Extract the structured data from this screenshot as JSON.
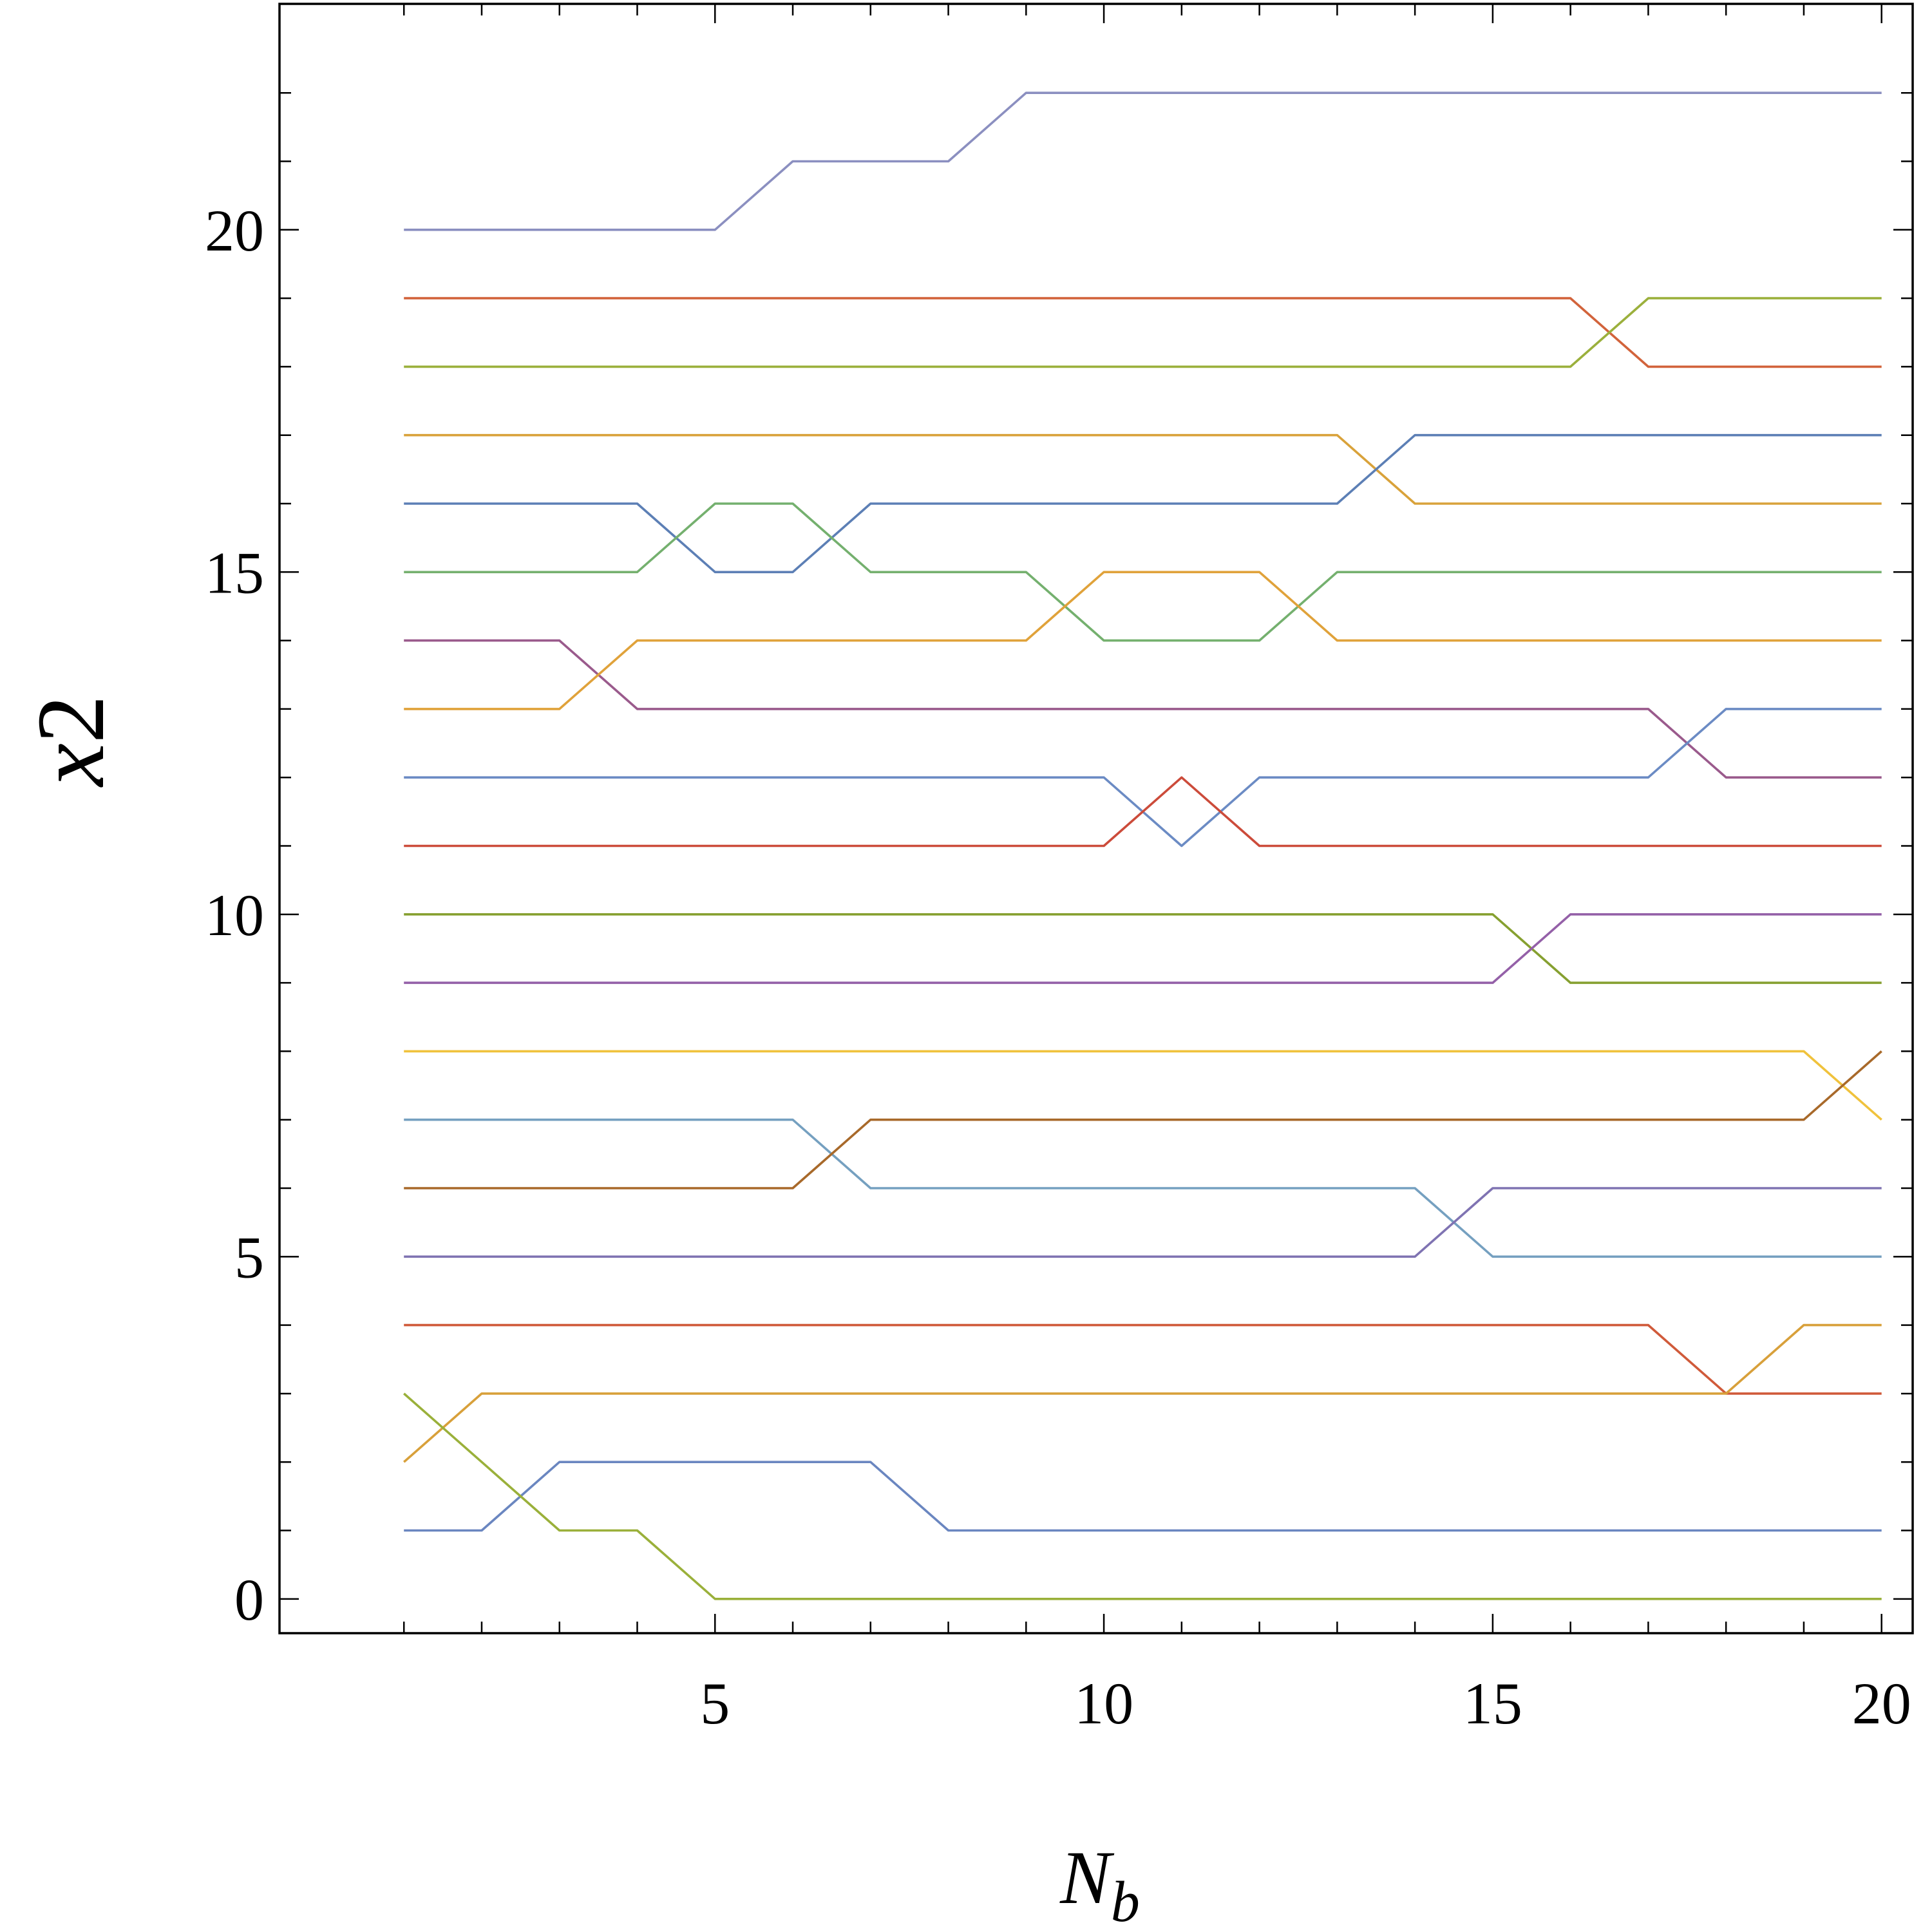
{
  "chart_data": {
    "type": "line",
    "xlabel": "N",
    "xlabel_sub": "b",
    "ylabel": "x",
    "ylabel_sub": "2",
    "xlim": [
      -0.6,
      20.4
    ],
    "ylim": [
      -0.5,
      23.3
    ],
    "x_ticks": [
      5,
      10,
      15,
      20
    ],
    "y_ticks": [
      0,
      5,
      10,
      15,
      20
    ],
    "x_minor_ticks": [
      1,
      2,
      3,
      4,
      5,
      6,
      7,
      8,
      9,
      10,
      11,
      12,
      13,
      14,
      15,
      16,
      17,
      18,
      19,
      20
    ],
    "y_minor_ticks": [
      0,
      1,
      2,
      3,
      4,
      5,
      6,
      7,
      8,
      9,
      10,
      11,
      12,
      13,
      14,
      15,
      16,
      17,
      18,
      19,
      20,
      21,
      22
    ],
    "grid": false,
    "x": [
      1,
      2,
      3,
      4,
      5,
      6,
      7,
      8,
      9,
      10,
      11,
      12,
      13,
      14,
      15,
      16,
      17,
      18,
      19,
      20
    ],
    "series": [
      {
        "color": "#8B8FC0",
        "values": [
          20,
          20,
          20,
          20,
          20,
          21,
          21,
          21,
          22,
          22,
          22,
          22,
          22,
          22,
          22,
          22,
          22,
          22,
          22,
          22
        ]
      },
      {
        "color": "#D2633B",
        "values": [
          19,
          19,
          19,
          19,
          19,
          19,
          19,
          19,
          19,
          19,
          19,
          19,
          19,
          19,
          19,
          19,
          18,
          18,
          18,
          18
        ]
      },
      {
        "color": "#9BB03C",
        "values": [
          18,
          18,
          18,
          18,
          18,
          18,
          18,
          18,
          18,
          18,
          18,
          18,
          18,
          18,
          18,
          18,
          19,
          19,
          19,
          19
        ]
      },
      {
        "color": "#D9A23A",
        "values": [
          17,
          17,
          17,
          17,
          17,
          17,
          17,
          17,
          17,
          17,
          17,
          17,
          17,
          16,
          16,
          16,
          16,
          16,
          16,
          16
        ]
      },
      {
        "color": "#5C7FB5",
        "values": [
          16,
          16,
          16,
          16,
          15,
          15,
          16,
          16,
          16,
          16,
          16,
          16,
          16,
          17,
          17,
          17,
          17,
          17,
          17,
          17
        ]
      },
      {
        "color": "#74B06E",
        "values": [
          15,
          15,
          15,
          15,
          16,
          16,
          15,
          15,
          15,
          14,
          14,
          14,
          15,
          15,
          15,
          15,
          15,
          15,
          15,
          15
        ]
      },
      {
        "color": "#9A5A8C",
        "values": [
          14,
          14,
          14,
          13,
          13,
          13,
          13,
          13,
          13,
          13,
          13,
          13,
          13,
          13,
          13,
          13,
          13,
          12,
          12,
          12
        ]
      },
      {
        "color": "#E0A23A",
        "values": [
          13,
          13,
          13,
          14,
          14,
          14,
          14,
          14,
          14,
          15,
          15,
          15,
          14,
          14,
          14,
          14,
          14,
          14,
          14,
          14
        ]
      },
      {
        "color": "#6B8BC4",
        "values": [
          12,
          12,
          12,
          12,
          12,
          12,
          12,
          12,
          12,
          12,
          11,
          12,
          12,
          12,
          12,
          12,
          12,
          13,
          13,
          13
        ]
      },
      {
        "color": "#CC4B3A",
        "values": [
          11,
          11,
          11,
          11,
          11,
          11,
          11,
          11,
          11,
          11,
          12,
          11,
          11,
          11,
          11,
          11,
          11,
          11,
          11,
          11
        ]
      },
      {
        "color": "#86A030",
        "values": [
          10,
          10,
          10,
          10,
          10,
          10,
          10,
          10,
          10,
          10,
          10,
          10,
          10,
          10,
          10,
          9,
          9,
          9,
          9,
          9
        ]
      },
      {
        "color": "#9460A8",
        "values": [
          9,
          9,
          9,
          9,
          9,
          9,
          9,
          9,
          9,
          9,
          9,
          9,
          9,
          9,
          9,
          10,
          10,
          10,
          10,
          10
        ]
      },
      {
        "color": "#F0C23C",
        "values": [
          8,
          8,
          8,
          8,
          8,
          8,
          8,
          8,
          8,
          8,
          8,
          8,
          8,
          8,
          8,
          8,
          8,
          8,
          8,
          7
        ]
      },
      {
        "color": "#75A0C0",
        "values": [
          7,
          7,
          7,
          7,
          7,
          7,
          6,
          6,
          6,
          6,
          6,
          6,
          6,
          6,
          5,
          5,
          5,
          5,
          5,
          5
        ]
      },
      {
        "color": "#A8692A",
        "values": [
          6,
          6,
          6,
          6,
          6,
          6,
          7,
          7,
          7,
          7,
          7,
          7,
          7,
          7,
          7,
          7,
          7,
          7,
          7,
          8
        ]
      },
      {
        "color": "#7F73B2",
        "values": [
          5,
          5,
          5,
          5,
          5,
          5,
          5,
          5,
          5,
          5,
          5,
          5,
          5,
          5,
          6,
          6,
          6,
          6,
          6,
          6
        ]
      },
      {
        "color": "#D05A3A",
        "values": [
          4,
          4,
          4,
          4,
          4,
          4,
          4,
          4,
          4,
          4,
          4,
          4,
          4,
          4,
          4,
          4,
          4,
          3,
          3,
          3
        ]
      },
      {
        "color": "#D8A03A",
        "values": [
          2,
          3,
          3,
          3,
          3,
          3,
          3,
          3,
          3,
          3,
          3,
          3,
          3,
          3,
          3,
          3,
          3,
          3,
          4,
          4
        ]
      },
      {
        "color": "#6A86C0",
        "values": [
          1,
          1,
          2,
          2,
          2,
          2,
          2,
          1,
          1,
          1,
          1,
          1,
          1,
          1,
          1,
          1,
          1,
          1,
          1,
          1
        ]
      },
      {
        "color": "#9AB03A",
        "values": [
          3,
          2,
          1,
          1,
          0,
          0,
          0,
          0,
          0,
          0,
          0,
          0,
          0,
          0,
          0,
          0,
          0,
          0,
          0,
          0
        ]
      }
    ]
  }
}
